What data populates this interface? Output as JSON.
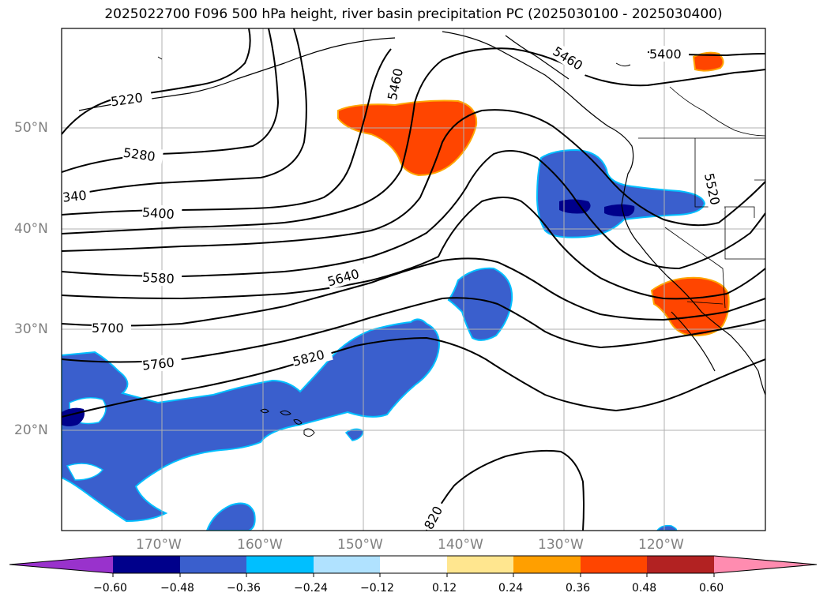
{
  "title": "2025022700 F096 500 hPa height, river basin precipitation PC (2025030100 - 2025030400)",
  "lat_labels": [
    "50°N",
    "40°N",
    "30°N",
    "20°N"
  ],
  "lon_labels": [
    "170°W",
    "160°W",
    "150°W",
    "140°W",
    "130°W",
    "120°W"
  ],
  "contour_labels": [
    "5220",
    "5280",
    "340",
    "5400",
    "5460",
    "5460",
    "5400",
    "5520",
    "5580",
    "5640",
    "5700",
    "5760",
    "5820",
    "820"
  ],
  "colorbar": {
    "ticks": [
      "−0.60",
      "−0.48",
      "−0.36",
      "−0.24",
      "−0.12",
      "0.12",
      "0.24",
      "0.36",
      "0.48",
      "0.60"
    ],
    "colors": [
      "#9932cc",
      "#00008b",
      "#3a5fcd",
      "#00bfff",
      "#b0e2ff",
      "#ffffff",
      "#ffe68f",
      "#ff9f00",
      "#ff4500",
      "#b22222",
      "#ff8cb0"
    ]
  }
}
